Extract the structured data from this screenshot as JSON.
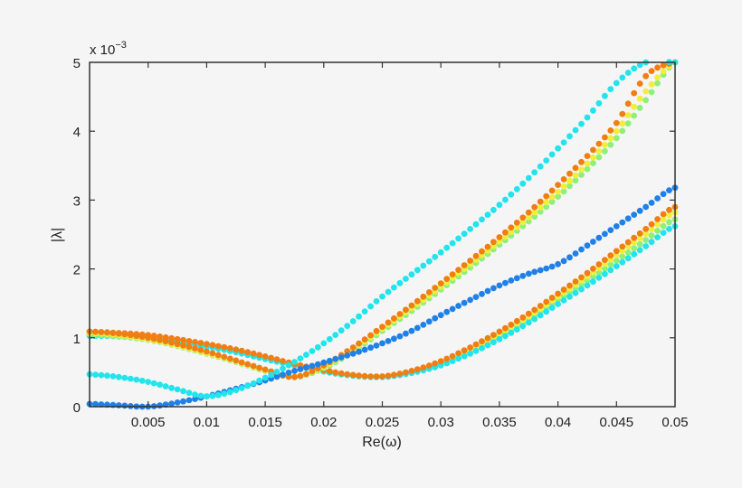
{
  "chart_data": {
    "type": "scatter",
    "title": "",
    "xlabel": "Re(ω)",
    "ylabel": "|λ|",
    "y_scale_label": "x 10",
    "y_scale_exponent": "−3",
    "xlim": [
      0,
      0.05
    ],
    "ylim": [
      0,
      5
    ],
    "y_units": "×10^-3",
    "grid": false,
    "legend": null,
    "x_ticks": [
      0.005,
      0.01,
      0.015,
      0.02,
      0.025,
      0.03,
      0.035,
      0.04,
      0.045,
      0.05
    ],
    "x_tick_labels": [
      "0.005",
      "0.01",
      "0.015",
      "0.02",
      "0.025",
      "0.03",
      "0.035",
      "0.04",
      "0.045",
      "0.05"
    ],
    "y_ticks": [
      0,
      1,
      2,
      3,
      4,
      5
    ],
    "y_tick_labels": [
      "0",
      "1",
      "2",
      "3",
      "4",
      "5"
    ],
    "marker_step": 0.0005,
    "x": [
      0,
      0.0025,
      0.005,
      0.0075,
      0.01,
      0.0125,
      0.015,
      0.0175,
      0.02,
      0.0225,
      0.025,
      0.0275,
      0.03,
      0.0325,
      0.035,
      0.0375,
      0.04,
      0.0425,
      0.045,
      0.0475,
      0.05
    ],
    "series": [
      {
        "name": "green-lower",
        "color": "#8ef07a",
        "values": [
          1.04,
          1.03,
          1.0,
          0.95,
          0.88,
          0.8,
          0.7,
          0.6,
          0.51,
          0.45,
          0.44,
          0.5,
          0.62,
          0.8,
          1.02,
          1.27,
          1.55,
          1.83,
          2.12,
          2.42,
          2.72
        ]
      },
      {
        "name": "yellow-lower",
        "color": "#f2ee3c",
        "values": [
          1.06,
          1.05,
          1.02,
          0.96,
          0.89,
          0.81,
          0.71,
          0.61,
          0.52,
          0.46,
          0.44,
          0.51,
          0.64,
          0.83,
          1.06,
          1.31,
          1.6,
          1.89,
          2.2,
          2.51,
          2.82
        ]
      },
      {
        "name": "cyan-lower",
        "color": "#22e4ec",
        "values": [
          1.03,
          1.02,
          0.99,
          0.94,
          0.87,
          0.79,
          0.69,
          0.6,
          0.51,
          0.45,
          0.43,
          0.49,
          0.6,
          0.77,
          0.98,
          1.22,
          1.49,
          1.76,
          2.04,
          2.33,
          2.62
        ]
      },
      {
        "name": "orange-lower",
        "color": "#f07e14",
        "values": [
          1.09,
          1.07,
          1.04,
          0.98,
          0.91,
          0.83,
          0.73,
          0.62,
          0.53,
          0.46,
          0.44,
          0.52,
          0.66,
          0.86,
          1.09,
          1.35,
          1.64,
          1.94,
          2.26,
          2.58,
          2.9
        ]
      },
      {
        "name": "green-steep",
        "color": "#8ef07a",
        "values": [
          1.05,
          1.02,
          0.97,
          0.88,
          0.77,
          0.65,
          0.52,
          0.43,
          0.56,
          0.8,
          1.1,
          1.39,
          1.7,
          2.02,
          2.35,
          2.69,
          3.05,
          3.45,
          3.9,
          4.45,
          5.0
        ]
      },
      {
        "name": "yellow-steep",
        "color": "#f2ee3c",
        "values": [
          1.07,
          1.04,
          0.98,
          0.89,
          0.78,
          0.66,
          0.53,
          0.44,
          0.58,
          0.83,
          1.13,
          1.43,
          1.74,
          2.07,
          2.4,
          2.75,
          3.12,
          3.53,
          4.0,
          4.58,
          5.0
        ]
      },
      {
        "name": "orange-steep",
        "color": "#f07e14",
        "values": [
          1.09,
          1.06,
          1.0,
          0.91,
          0.8,
          0.67,
          0.54,
          0.43,
          0.6,
          0.86,
          1.16,
          1.47,
          1.79,
          2.12,
          2.46,
          2.82,
          3.22,
          3.64,
          4.12,
          4.8,
          5.0
        ]
      },
      {
        "name": "blue",
        "color": "#1f80e8",
        "values": [
          0.04,
          0.02,
          0.0,
          0.06,
          0.15,
          0.26,
          0.38,
          0.52,
          0.64,
          0.77,
          0.92,
          1.1,
          1.33,
          1.55,
          1.76,
          1.93,
          2.07,
          2.34,
          2.62,
          2.9,
          3.18
        ]
      },
      {
        "name": "cyan-steep",
        "color": "#22e4ec",
        "values": [
          0.47,
          0.43,
          0.36,
          0.25,
          0.15,
          0.24,
          0.42,
          0.65,
          0.92,
          1.24,
          1.6,
          1.92,
          2.24,
          2.58,
          2.93,
          3.32,
          3.75,
          4.2,
          4.7,
          5.0,
          5.0
        ]
      }
    ]
  }
}
